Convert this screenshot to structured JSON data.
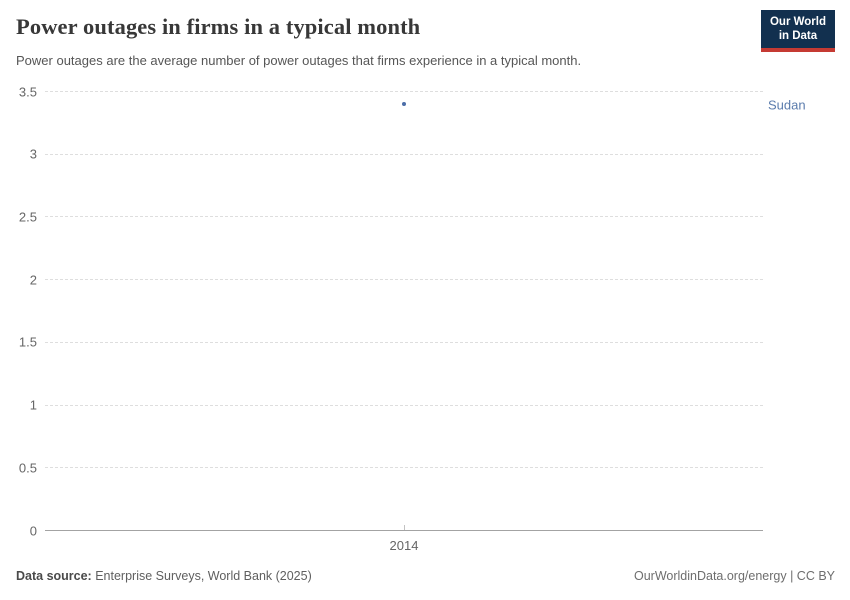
{
  "header": {
    "title": "Power outages in firms in a typical month",
    "subtitle": "Power outages are the average number of power outages that firms experience in a typical month.",
    "logo_line1": "Our World",
    "logo_line2": "in Data"
  },
  "chart_data": {
    "type": "scatter",
    "title": "Power outages in firms in a typical month",
    "series": [
      {
        "name": "Sudan",
        "x": [
          2014
        ],
        "y": [
          3.4
        ]
      }
    ],
    "xticks": [
      "2014"
    ],
    "yticks": [
      0,
      0.5,
      1,
      1.5,
      2,
      2.5,
      3,
      3.5
    ],
    "ylim": [
      0,
      3.5
    ],
    "grid": true,
    "gridstyle": "dashed",
    "entity_label_position": "right"
  },
  "colors": {
    "entity_point": "#4c6ea8",
    "entity_label": "#5b7cad",
    "logo_bg": "#12304f",
    "logo_accent": "#c53a33"
  },
  "footer": {
    "source_label": "Data source:",
    "source_text": "Enterprise Surveys, World Bank (2025)",
    "license": "OurWorldinData.org/energy | CC BY"
  }
}
